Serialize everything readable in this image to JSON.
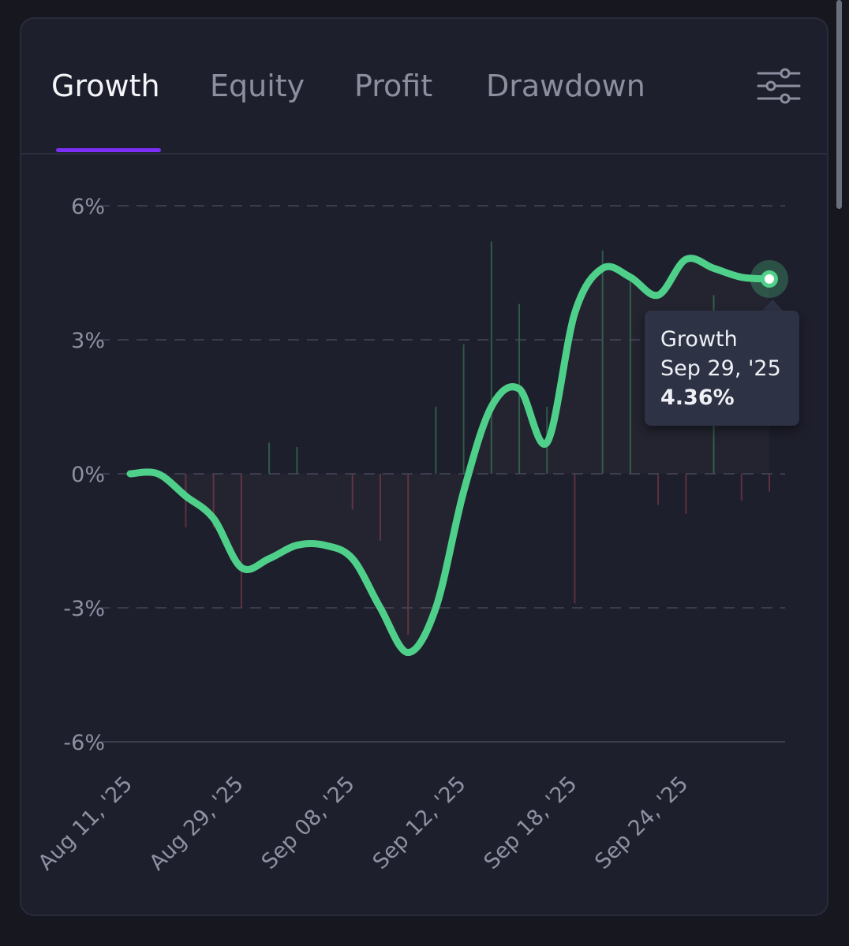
{
  "tabs": [
    {
      "label": "Growth",
      "active": true
    },
    {
      "label": "Equity",
      "active": false
    },
    {
      "label": "Profit",
      "active": false
    },
    {
      "label": "Drawdown",
      "active": false
    }
  ],
  "settings_icon": "sliders-icon",
  "colors": {
    "background": "#17171f",
    "card": "#1e1f2c",
    "accent": "#7b2ff7",
    "line": "#4fd08a",
    "positive_bar": "#2f5a47",
    "negative_bar": "#5e3040",
    "grid": "#3a3c4e"
  },
  "tooltip": {
    "title": "Growth",
    "date": "Sep 29, '25",
    "value": "4.36%"
  },
  "chart_data": {
    "type": "line",
    "title": "",
    "xlabel": "",
    "ylabel": "",
    "ylim": [
      -6,
      6
    ],
    "yticks": [
      6,
      3,
      0,
      -3,
      -6
    ],
    "ytick_labels": [
      "6%",
      "3%",
      "0%",
      "-3%",
      "-6%"
    ],
    "x_tick_labels": [
      "Aug 11, '25",
      "Aug 29, '25",
      "Sep 08, '25",
      "Sep 12, '25",
      "Sep 18, '25",
      "Sep 24, '25"
    ],
    "x_tick_positions": [
      0,
      4,
      8,
      12,
      16,
      20
    ],
    "grid": true,
    "legend": "none",
    "series": [
      {
        "type": "line",
        "x": [
          0,
          1,
          2,
          3,
          4,
          5,
          6,
          7,
          8,
          9,
          10,
          11,
          12,
          13,
          14,
          15,
          16,
          17,
          18,
          19,
          20,
          21,
          22,
          23
        ],
        "values": [
          0,
          0,
          -0.5,
          -1.0,
          -2.1,
          -1.9,
          -1.6,
          -1.6,
          -1.9,
          -3.0,
          -4.0,
          -3.0,
          -0.4,
          1.5,
          1.9,
          0.7,
          3.6,
          4.6,
          4.4,
          4.0,
          4.8,
          4.6,
          4.4,
          4.36
        ]
      },
      {
        "type": "bar",
        "x": [
          2,
          3,
          4,
          5,
          6,
          8,
          9,
          10,
          11,
          12,
          13,
          14,
          15,
          16,
          17,
          18,
          19,
          20,
          21,
          22,
          23
        ],
        "values": [
          -1.2,
          -1.2,
          -3.0,
          0.7,
          0.6,
          -0.8,
          -1.5,
          -3.6,
          1.5,
          2.9,
          5.2,
          3.8,
          1.5,
          -2.9,
          5.0,
          4.5,
          -0.7,
          -0.9,
          4.0,
          -0.6,
          -0.4
        ]
      }
    ]
  }
}
